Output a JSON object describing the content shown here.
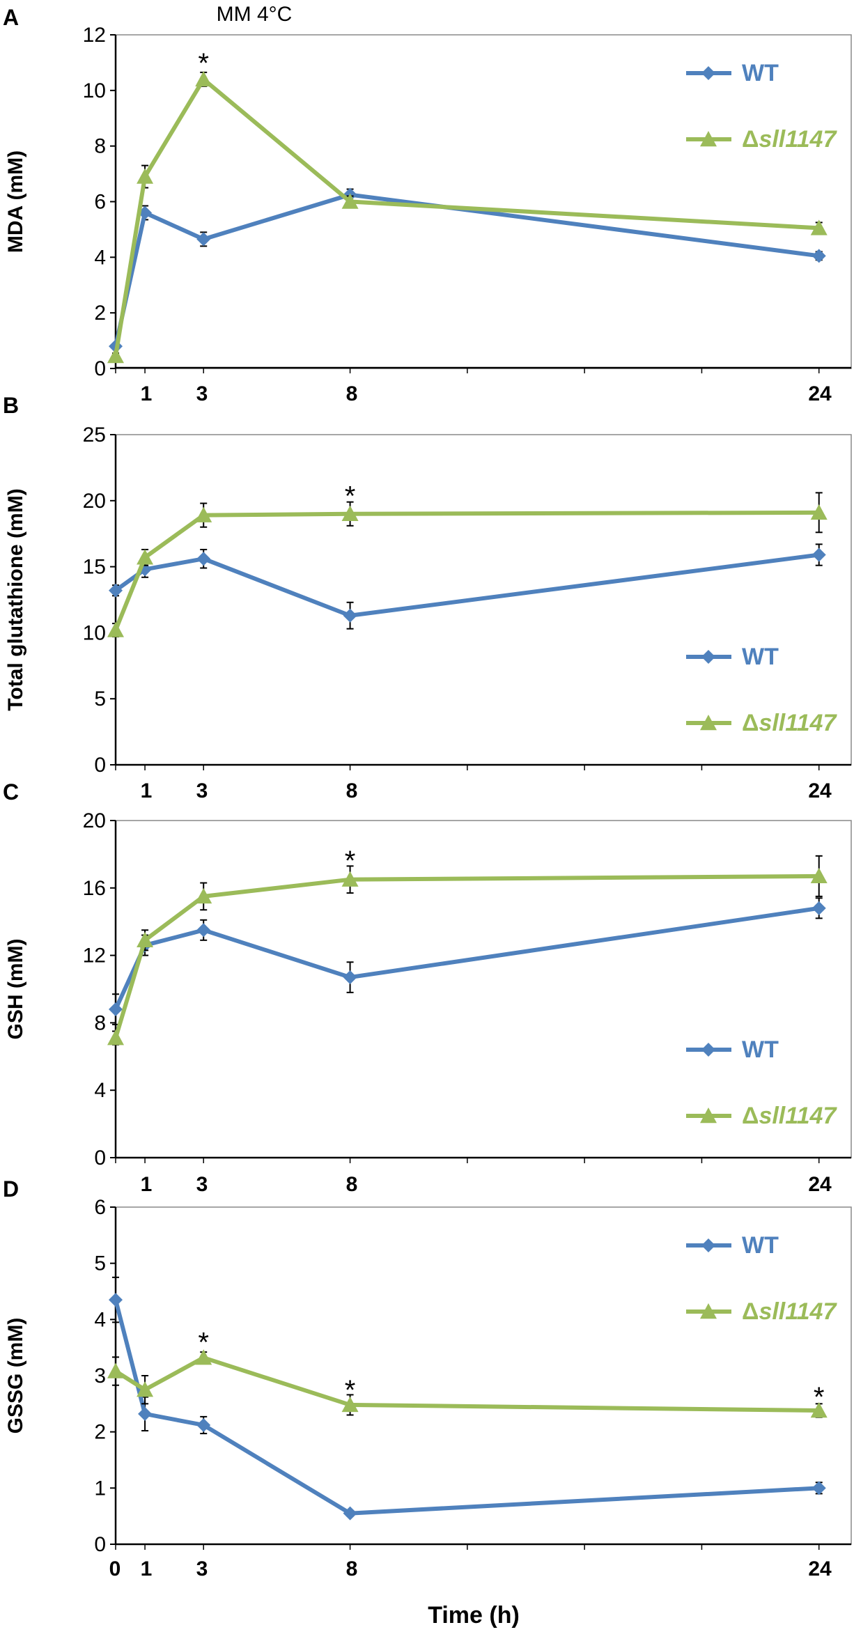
{
  "figure_title": "MM 4°C",
  "xlabel": "Time (h)",
  "colors": {
    "wt": "#4f81bd",
    "mutant": "#9bbb59",
    "axis": "#000000"
  },
  "chart_data": [
    {
      "type": "line",
      "panel": "A",
      "ylabel": "MDA (mM)",
      "ylim": [
        0,
        12
      ],
      "yticks": [
        "0",
        "2",
        "4",
        "6",
        "8",
        "10",
        "12"
      ],
      "xlim": [
        0,
        25.1
      ],
      "xticks": [
        "1",
        "3",
        "8",
        "24"
      ],
      "x": [
        0,
        1,
        3,
        8,
        24
      ],
      "legend_position": "top-right",
      "series": [
        {
          "name": "WT",
          "marker": "diamond",
          "values": [
            0.8,
            5.6,
            4.65,
            6.25,
            4.05
          ],
          "errors": [
            0.1,
            0.25,
            0.25,
            0.2,
            0.15
          ]
        },
        {
          "name": "Δsll1147",
          "name_prefix": "Δ",
          "name_italic": "sll1147",
          "marker": "triangle",
          "values": [
            0.45,
            6.9,
            10.4,
            6.0,
            5.05
          ],
          "errors": [
            0.1,
            0.4,
            0.25,
            0.2,
            0.2
          ]
        }
      ],
      "significance": [
        {
          "x": 3,
          "y": 11.1,
          "label": "*"
        }
      ]
    },
    {
      "type": "line",
      "panel": "B",
      "ylabel": "Total glutathione (mM)",
      "ylim": [
        0,
        25
      ],
      "yticks": [
        "0",
        "5",
        "10",
        "15",
        "20",
        "25"
      ],
      "xlim": [
        0,
        25.1
      ],
      "xticks": [
        "1",
        "3",
        "8",
        "24"
      ],
      "x": [
        0,
        1,
        3,
        8,
        24
      ],
      "legend_position": "bottom-right",
      "series": [
        {
          "name": "WT",
          "marker": "diamond",
          "values": [
            13.2,
            14.8,
            15.6,
            11.3,
            15.9
          ],
          "errors": [
            0.4,
            0.6,
            0.7,
            1.0,
            0.8
          ]
        },
        {
          "name": "Δsll1147",
          "name_prefix": "Δ",
          "name_italic": "sll1147",
          "marker": "triangle",
          "values": [
            10.2,
            15.7,
            18.9,
            19.0,
            19.1
          ],
          "errors": [
            0.5,
            0.6,
            0.9,
            0.9,
            1.5
          ]
        }
      ],
      "significance": [
        {
          "x": 8,
          "y": 20.6,
          "label": "*"
        }
      ]
    },
    {
      "type": "line",
      "panel": "C",
      "ylabel": "GSH (mM)",
      "ylim": [
        0,
        20
      ],
      "yticks": [
        "0",
        "4",
        "8",
        "12",
        "16",
        "20"
      ],
      "xlim": [
        0,
        25.1
      ],
      "xticks": [
        "1",
        "3",
        "8",
        "24"
      ],
      "x": [
        0,
        1,
        3,
        8,
        24
      ],
      "legend_position": "bottom-right",
      "series": [
        {
          "name": "WT",
          "marker": "diamond",
          "values": [
            8.8,
            12.6,
            13.5,
            10.7,
            14.8
          ],
          "errors": [
            0.9,
            0.6,
            0.6,
            0.9,
            0.6
          ]
        },
        {
          "name": "Δsll1147",
          "name_prefix": "Δ",
          "name_italic": "sll1147",
          "marker": "triangle",
          "values": [
            7.1,
            12.9,
            15.5,
            16.5,
            16.7
          ],
          "errors": [
            0.4,
            0.6,
            0.8,
            0.8,
            1.2
          ]
        }
      ],
      "significance": [
        {
          "x": 8,
          "y": 17.8,
          "label": "*"
        }
      ]
    },
    {
      "type": "line",
      "panel": "D",
      "ylabel": "GSSG (mM)",
      "ylim": [
        0,
        6
      ],
      "yticks": [
        "0",
        "1",
        "2",
        "3",
        "4",
        "5",
        "6"
      ],
      "xlim": [
        0,
        25.1
      ],
      "xticks": [
        "0",
        "1",
        "3",
        "8",
        "24"
      ],
      "x": [
        0,
        1,
        3,
        8,
        24
      ],
      "legend_position": "top-right",
      "series": [
        {
          "name": "WT",
          "marker": "diamond",
          "values": [
            4.35,
            2.32,
            2.12,
            0.55,
            1.0
          ],
          "errors": [
            0.4,
            0.3,
            0.15,
            0.05,
            0.1
          ]
        },
        {
          "name": "Δsll1147",
          "name_prefix": "Δ",
          "name_italic": "sll1147",
          "marker": "triangle",
          "values": [
            3.08,
            2.75,
            3.32,
            2.48,
            2.38
          ],
          "errors": [
            0.25,
            0.25,
            0.1,
            0.18,
            0.12
          ]
        }
      ],
      "significance": [
        {
          "x": 3,
          "y": 3.65,
          "label": "*"
        },
        {
          "x": 8,
          "y": 2.8,
          "label": "*"
        },
        {
          "x": 24,
          "y": 2.68,
          "label": "*"
        }
      ]
    }
  ]
}
